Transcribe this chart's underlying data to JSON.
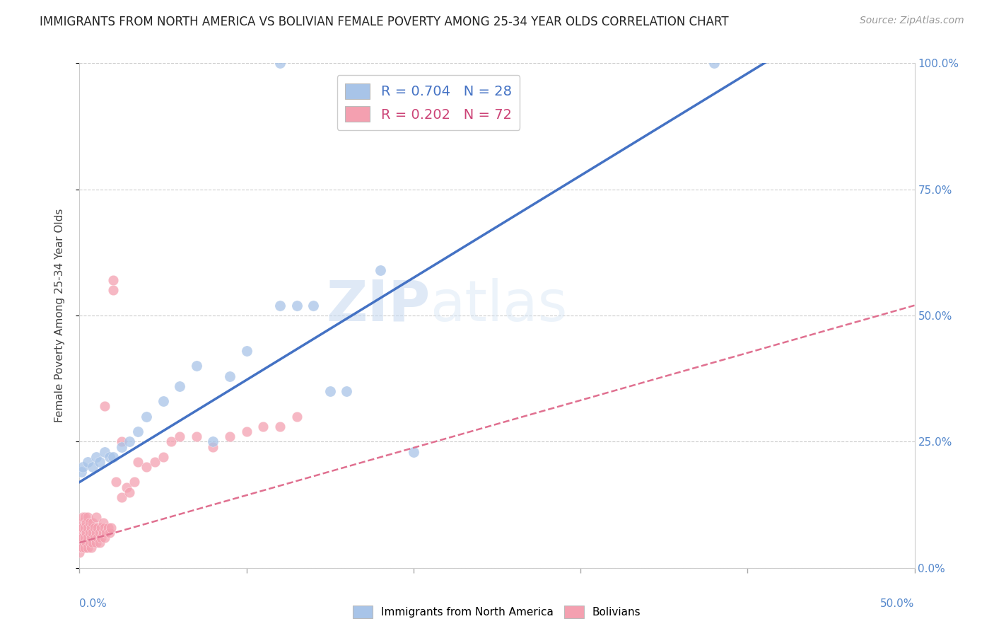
{
  "title": "IMMIGRANTS FROM NORTH AMERICA VS BOLIVIAN FEMALE POVERTY AMONG 25-34 YEAR OLDS CORRELATION CHART",
  "source": "Source: ZipAtlas.com",
  "ylabel": "Female Poverty Among 25-34 Year Olds",
  "right_yticks": [
    0.0,
    0.25,
    0.5,
    0.75,
    1.0
  ],
  "right_yticklabels": [
    "0.0%",
    "25.0%",
    "50.0%",
    "75.0%",
    "100.0%"
  ],
  "blue_R": 0.704,
  "blue_N": 28,
  "pink_R": 0.202,
  "pink_N": 72,
  "legend_label_blue": "Immigrants from North America",
  "legend_label_pink": "Bolivians",
  "blue_color": "#a8c4e8",
  "pink_color": "#f4a0b0",
  "blue_line_color": "#4472c4",
  "pink_line_color": "#e07090",
  "watermark_zip": "ZIP",
  "watermark_atlas": "atlas",
  "xlim": [
    0.0,
    0.5
  ],
  "ylim": [
    0.0,
    1.0
  ],
  "blue_line_x": [
    0.0,
    0.42
  ],
  "blue_line_y": [
    0.17,
    1.02
  ],
  "pink_line_x": [
    0.0,
    0.5
  ],
  "pink_line_y": [
    0.05,
    0.52
  ],
  "blue_x": [
    0.001,
    0.002,
    0.005,
    0.008,
    0.01,
    0.012,
    0.015,
    0.018,
    0.02,
    0.025,
    0.03,
    0.035,
    0.04,
    0.05,
    0.06,
    0.07,
    0.08,
    0.09,
    0.1,
    0.12,
    0.13,
    0.14,
    0.15,
    0.16,
    0.18,
    0.2,
    0.38,
    0.12
  ],
  "blue_y": [
    0.19,
    0.2,
    0.21,
    0.2,
    0.22,
    0.21,
    0.23,
    0.22,
    0.22,
    0.24,
    0.25,
    0.27,
    0.3,
    0.33,
    0.36,
    0.4,
    0.25,
    0.38,
    0.43,
    0.52,
    0.52,
    0.52,
    0.35,
    0.35,
    0.59,
    0.23,
    1.0,
    1.0
  ],
  "pink_x": [
    0.0,
    0.0,
    0.001,
    0.001,
    0.001,
    0.001,
    0.001,
    0.002,
    0.002,
    0.002,
    0.002,
    0.003,
    0.003,
    0.003,
    0.003,
    0.004,
    0.004,
    0.004,
    0.005,
    0.005,
    0.005,
    0.005,
    0.006,
    0.006,
    0.006,
    0.007,
    0.007,
    0.007,
    0.008,
    0.008,
    0.008,
    0.009,
    0.009,
    0.01,
    0.01,
    0.01,
    0.011,
    0.011,
    0.012,
    0.012,
    0.013,
    0.013,
    0.014,
    0.014,
    0.015,
    0.015,
    0.016,
    0.017,
    0.018,
    0.019,
    0.02,
    0.022,
    0.025,
    0.028,
    0.03,
    0.033,
    0.035,
    0.04,
    0.045,
    0.05,
    0.055,
    0.06,
    0.07,
    0.08,
    0.09,
    0.1,
    0.11,
    0.12,
    0.13,
    0.02,
    0.025,
    0.015
  ],
  "pink_y": [
    0.03,
    0.05,
    0.04,
    0.06,
    0.07,
    0.08,
    0.09,
    0.04,
    0.06,
    0.08,
    0.1,
    0.04,
    0.06,
    0.08,
    0.1,
    0.05,
    0.07,
    0.09,
    0.04,
    0.06,
    0.08,
    0.1,
    0.05,
    0.07,
    0.09,
    0.04,
    0.06,
    0.08,
    0.05,
    0.07,
    0.09,
    0.06,
    0.08,
    0.05,
    0.07,
    0.1,
    0.06,
    0.08,
    0.05,
    0.07,
    0.06,
    0.08,
    0.07,
    0.09,
    0.06,
    0.08,
    0.07,
    0.08,
    0.07,
    0.08,
    0.57,
    0.17,
    0.14,
    0.16,
    0.15,
    0.17,
    0.21,
    0.2,
    0.21,
    0.22,
    0.25,
    0.26,
    0.26,
    0.24,
    0.26,
    0.27,
    0.28,
    0.28,
    0.3,
    0.55,
    0.25,
    0.32
  ]
}
